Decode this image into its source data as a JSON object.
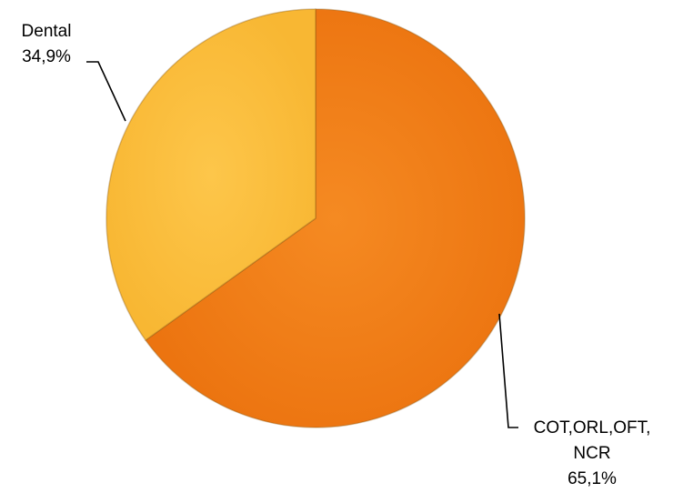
{
  "chart_data": {
    "type": "pie",
    "slices": [
      {
        "label_lines": [
          "COT,ORL,OFT,",
          "NCR"
        ],
        "value_label": "65,1%",
        "value": 65.1,
        "color": "#f07a14"
      },
      {
        "label_lines": [
          "Dental"
        ],
        "value_label": "34,9%",
        "value": 34.9,
        "color": "#fbbd3d"
      }
    ],
    "start_angle_deg": 0,
    "direction": "clockwise",
    "legend": "none",
    "data_labels": "outside with leader lines"
  }
}
